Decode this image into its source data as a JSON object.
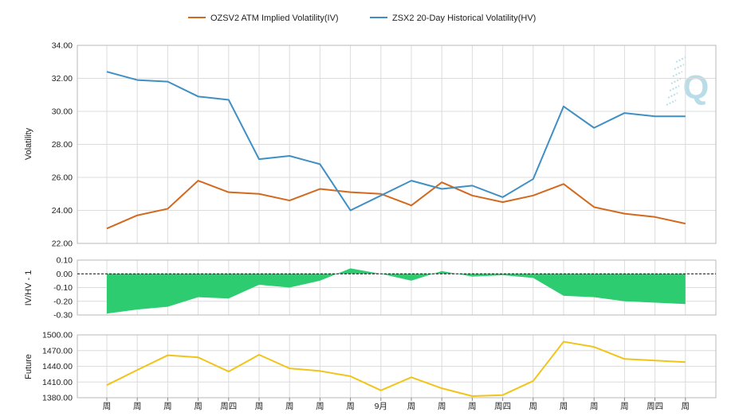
{
  "colors": {
    "iv": "#d2691e",
    "hv": "#3f8fc4",
    "ratio_fill": "#2ecc71",
    "future": "#f0c419",
    "watermark": "#b9dde8"
  },
  "watermark": {
    "icon": "q-logo-icon",
    "letter": "Q"
  },
  "chart_data": [
    {
      "type": "line",
      "panel": "volatility",
      "ylabel": "Volatility",
      "ylim": [
        22,
        34
      ],
      "yticks": [
        "34.00",
        "32.00",
        "30.00",
        "28.00",
        "26.00",
        "24.00",
        "22.00"
      ],
      "legend_position": "top-center",
      "series": [
        {
          "name": "OZSV2 ATM Implied Volatility(IV)",
          "color_key": "iv",
          "values": [
            22.9,
            23.7,
            24.1,
            25.8,
            25.1,
            25.0,
            24.6,
            25.3,
            25.1,
            25.0,
            24.3,
            25.7,
            24.9,
            24.5,
            24.9,
            25.6,
            24.2,
            23.8,
            23.6,
            23.2
          ]
        },
        {
          "name": "ZSX2 20-Day Historical Volatility(HV)",
          "color_key": "hv",
          "values": [
            32.4,
            31.9,
            31.8,
            30.9,
            30.7,
            27.1,
            27.3,
            26.8,
            24.0,
            24.9,
            25.8,
            25.3,
            25.5,
            24.8,
            25.9,
            30.3,
            29.0,
            29.9,
            29.7,
            29.7
          ]
        }
      ]
    },
    {
      "type": "area",
      "panel": "ratio",
      "ylabel": "IV/HV - 1",
      "ylim": [
        -0.3,
        0.1
      ],
      "yticks": [
        "0.10",
        "0.00",
        "-0.10",
        "-0.20",
        "-0.30"
      ],
      "baseline": 0,
      "series": [
        {
          "color_key": "ratio_fill",
          "values": [
            -0.29,
            -0.26,
            -0.24,
            -0.17,
            -0.18,
            -0.08,
            -0.1,
            -0.05,
            0.04,
            0.0,
            -0.05,
            0.02,
            -0.02,
            -0.01,
            -0.03,
            -0.16,
            -0.17,
            -0.2,
            -0.21,
            -0.22
          ]
        }
      ]
    },
    {
      "type": "line",
      "panel": "future",
      "ylabel": "Future",
      "ylim": [
        1380,
        1500
      ],
      "yticks": [
        "1500.00",
        "1470.00",
        "1440.00",
        "1410.00",
        "1380.00"
      ],
      "series": [
        {
          "color_key": "future",
          "values": [
            1404,
            1433,
            1461,
            1457,
            1430,
            1462,
            1436,
            1431,
            1421,
            1394,
            1419,
            1398,
            1383,
            1385,
            1412,
            1487,
            1477,
            1454,
            1451,
            1448
          ]
        }
      ]
    }
  ],
  "x_axis": {
    "tick_labels": [
      "周",
      "周",
      "周",
      "周",
      "周四",
      "周",
      "周",
      "周",
      "周",
      "9月",
      "周",
      "周",
      "周",
      "周四",
      "周",
      "周",
      "周",
      "周",
      "周四",
      "周"
    ]
  }
}
